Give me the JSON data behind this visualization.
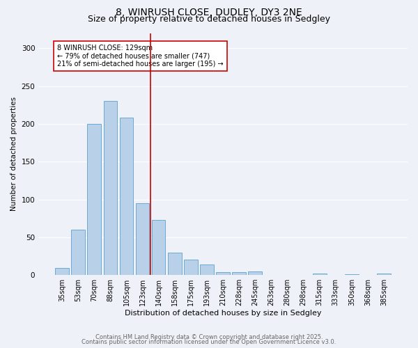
{
  "title1": "8, WINRUSH CLOSE, DUDLEY, DY3 2NE",
  "title2": "Size of property relative to detached houses in Sedgley",
  "xlabel": "Distribution of detached houses by size in Sedgley",
  "ylabel": "Number of detached properties",
  "categories": [
    "35sqm",
    "53sqm",
    "70sqm",
    "88sqm",
    "105sqm",
    "123sqm",
    "140sqm",
    "158sqm",
    "175sqm",
    "193sqm",
    "210sqm",
    "228sqm",
    "245sqm",
    "263sqm",
    "280sqm",
    "298sqm",
    "315sqm",
    "333sqm",
    "350sqm",
    "368sqm",
    "385sqm"
  ],
  "values": [
    9,
    60,
    200,
    230,
    208,
    95,
    73,
    30,
    20,
    14,
    4,
    4,
    5,
    0,
    0,
    0,
    2,
    0,
    1,
    0,
    2
  ],
  "bar_color": "#b8d0e8",
  "bar_edge_color": "#6aaad4",
  "vline_x_index": 6.0,
  "vline_color": "#cc0000",
  "annotation_text": "8 WINRUSH CLOSE: 129sqm\n← 79% of detached houses are smaller (747)\n21% of semi-detached houses are larger (195) →",
  "annotation_box_color": "#ffffff",
  "annotation_box_edge": "#cc0000",
  "ylim": [
    0,
    320
  ],
  "yticks": [
    0,
    50,
    100,
    150,
    200,
    250,
    300
  ],
  "footer1": "Contains HM Land Registry data © Crown copyright and database right 2025.",
  "footer2": "Contains public sector information licensed under the Open Government Licence v3.0.",
  "bg_color": "#eef2f8",
  "title1_fontsize": 10,
  "title2_fontsize": 9,
  "xlabel_fontsize": 8,
  "ylabel_fontsize": 7.5,
  "tick_fontsize": 7,
  "footer_fontsize": 6
}
